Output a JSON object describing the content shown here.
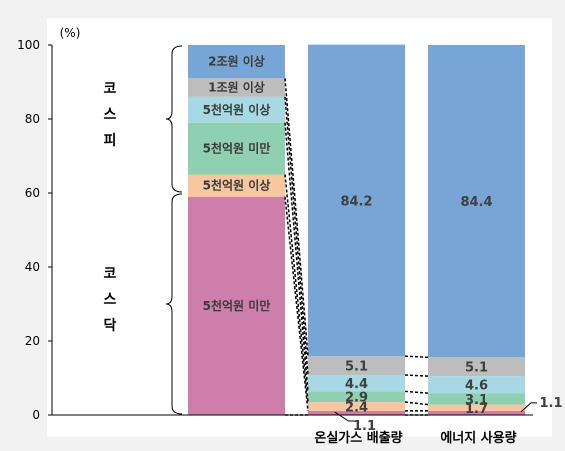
{
  "chart_data": {
    "type": "bar",
    "stacked": true,
    "ylabel": "(%)",
    "ylim": [
      0,
      100
    ],
    "yticks": [
      0,
      20,
      40,
      60,
      80,
      100
    ],
    "grid": false,
    "group_labels": [
      {
        "name": "kospi",
        "label": "코\n스\n피",
        "range": [
          60,
          100
        ]
      },
      {
        "name": "kosdaq",
        "label": "코\n스\n닥",
        "range": [
          0,
          60
        ]
      }
    ],
    "categories": [
      "",
      "온실가스 배출량",
      "에너지 사용량"
    ],
    "series": [
      {
        "name": "kosdaq-under-500b",
        "label": "5천억원 미만",
        "color": "#cd7eab",
        "values": [
          59.0,
          1.1,
          1.1
        ]
      },
      {
        "name": "kosdaq-over-500b",
        "label": "5천억원 이상",
        "color": "#f7c79f",
        "values": [
          6.0,
          2.4,
          1.7
        ]
      },
      {
        "name": "kospi-under-500b",
        "label": "5천억원 미만",
        "color": "#8fd0b2",
        "values": [
          14.0,
          2.9,
          3.1
        ]
      },
      {
        "name": "kospi-over-500b",
        "label": "5천억원 이상",
        "color": "#a8d8e4",
        "values": [
          7.0,
          4.4,
          4.6
        ]
      },
      {
        "name": "kospi-1to2t",
        "label": "1조원 이상",
        "color": "#bdbdbd",
        "values": [
          5.0,
          5.1,
          5.1
        ]
      },
      {
        "name": "kospi-over-2t",
        "label": "2조원 이상",
        "color": "#77a6d6",
        "values": [
          9.0,
          84.2,
          84.4
        ]
      }
    ],
    "data_labels": [
      {
        "bar": 1,
        "series": 0,
        "text": "1.1",
        "pos": "below"
      },
      {
        "bar": 1,
        "series": 1,
        "text": "2.4"
      },
      {
        "bar": 1,
        "series": 2,
        "text": "2.9"
      },
      {
        "bar": 1,
        "series": 3,
        "text": "4.4"
      },
      {
        "bar": 1,
        "series": 4,
        "text": "5.1"
      },
      {
        "bar": 1,
        "series": 5,
        "text": "84.2"
      },
      {
        "bar": 2,
        "series": 0,
        "text": "1.1",
        "pos": "right"
      },
      {
        "bar": 2,
        "series": 1,
        "text": "1.7"
      },
      {
        "bar": 2,
        "series": 2,
        "text": "3.1"
      },
      {
        "bar": 2,
        "series": 3,
        "text": "4.6"
      },
      {
        "bar": 2,
        "series": 4,
        "text": "5.1"
      },
      {
        "bar": 2,
        "series": 5,
        "text": "84.4"
      }
    ]
  }
}
